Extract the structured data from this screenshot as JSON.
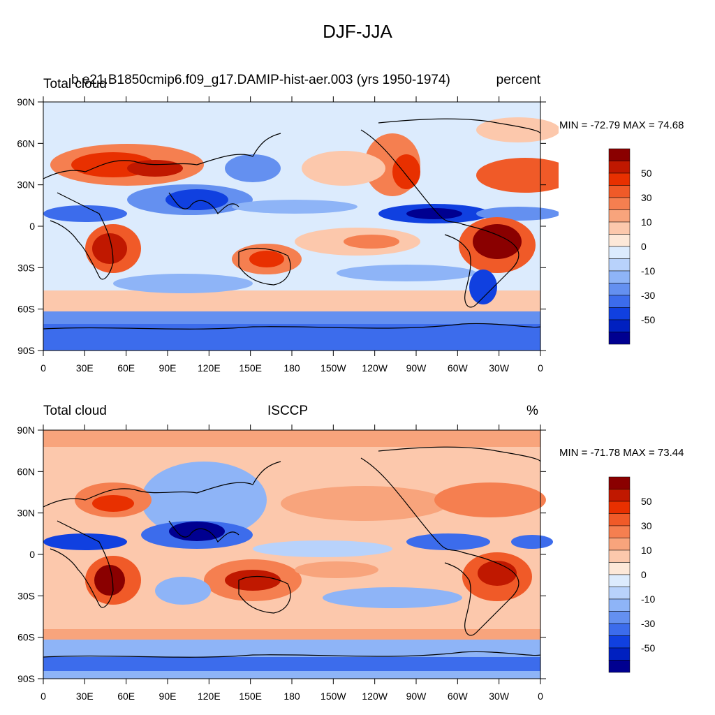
{
  "title": "DJF-JJA",
  "panels": [
    {
      "left": "Total cloud",
      "center": "b.e21.B1850cmip6.f09_g17.DAMIP-hist-aer.003 (yrs 1950-1974)",
      "right": "percent",
      "minmax": "MIN = -72.79 MAX =  74.68"
    },
    {
      "left": "Total cloud",
      "center": "ISCCP",
      "right": "%",
      "minmax": "MIN = -71.78 MAX =  73.44"
    }
  ],
  "lat_ticks": [
    "90N",
    "60N",
    "30N",
    "0",
    "30S",
    "60S",
    "90S"
  ],
  "lon_ticks": [
    "0",
    "30E",
    "60E",
    "90E",
    "120E",
    "150E",
    "180",
    "150W",
    "120W",
    "90W",
    "60W",
    "30W",
    "0"
  ],
  "colorbar": {
    "labels": [
      "50",
      "30",
      "10",
      "0",
      "-10",
      "-30",
      "-50"
    ],
    "colors": [
      "#8a0000",
      "#c01800",
      "#e83000",
      "#f05a28",
      "#f57f50",
      "#f8a47c",
      "#fcc8ac",
      "#fde8d8",
      "#dcebfd",
      "#b8d2fb",
      "#8eb4f7",
      "#6490f0",
      "#3c6cec",
      "#1040e0",
      "#0020c0",
      "#000090"
    ]
  },
  "chart_data": [
    {
      "type": "heatmap",
      "title": "DJF-JJA",
      "subtitle": "b.e21.B1850cmip6.f09_g17.DAMIP-hist-aer.003 (yrs 1950-1974)",
      "variable": "Total cloud",
      "units": "percent",
      "min": -72.79,
      "max": 74.68,
      "x_ticks": [
        "0",
        "30E",
        "60E",
        "90E",
        "120E",
        "150E",
        "180",
        "150W",
        "120W",
        "90W",
        "60W",
        "30W",
        "0"
      ],
      "y_ticks": [
        "90N",
        "60N",
        "30N",
        "0",
        "30S",
        "60S",
        "90S"
      ],
      "xlim": [
        0,
        360
      ],
      "ylim": [
        -90,
        90
      ],
      "colorbar_levels": [
        -70,
        -60,
        -50,
        -40,
        -30,
        -20,
        -10,
        -5,
        0,
        5,
        10,
        20,
        30,
        40,
        50,
        60,
        70
      ],
      "colorbar_labels": [
        "-50",
        "-30",
        "-10",
        "0",
        "10",
        "30",
        "50"
      ]
    },
    {
      "type": "heatmap",
      "title": "DJF-JJA",
      "subtitle": "ISCCP",
      "variable": "Total cloud",
      "units": "%",
      "min": -71.78,
      "max": 73.44,
      "x_ticks": [
        "0",
        "30E",
        "60E",
        "90E",
        "120E",
        "150E",
        "180",
        "150W",
        "120W",
        "90W",
        "60W",
        "30W",
        "0"
      ],
      "y_ticks": [
        "90N",
        "60N",
        "30N",
        "0",
        "30S",
        "60S",
        "90S"
      ],
      "xlim": [
        0,
        360
      ],
      "ylim": [
        -90,
        90
      ],
      "colorbar_levels": [
        -70,
        -60,
        -50,
        -40,
        -30,
        -20,
        -10,
        -5,
        0,
        5,
        10,
        20,
        30,
        40,
        50,
        60,
        70
      ],
      "colorbar_labels": [
        "-50",
        "-30",
        "-10",
        "0",
        "10",
        "30",
        "50"
      ]
    }
  ]
}
